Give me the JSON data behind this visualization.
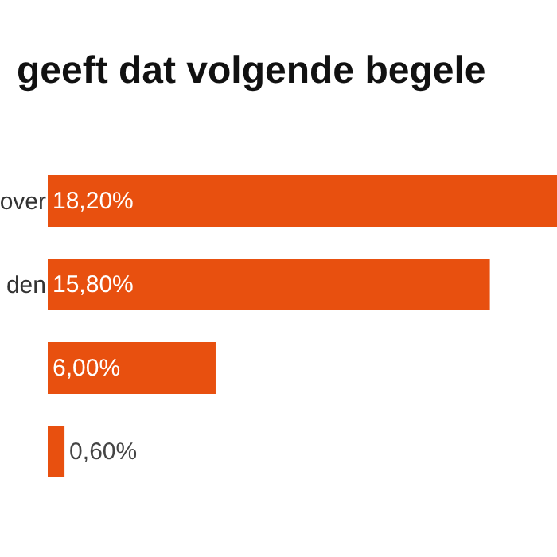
{
  "chart_data": {
    "type": "bar",
    "orientation": "horizontal",
    "title": "geeft dat volgende begele",
    "categories": [
      "over",
      "den",
      null,
      null
    ],
    "values": [
      18.2,
      15.8,
      6.0,
      0.6
    ],
    "value_labels": [
      "18,20%",
      "15,80%",
      "6,00%",
      "0,60%"
    ],
    "color": "#e8500f"
  }
}
